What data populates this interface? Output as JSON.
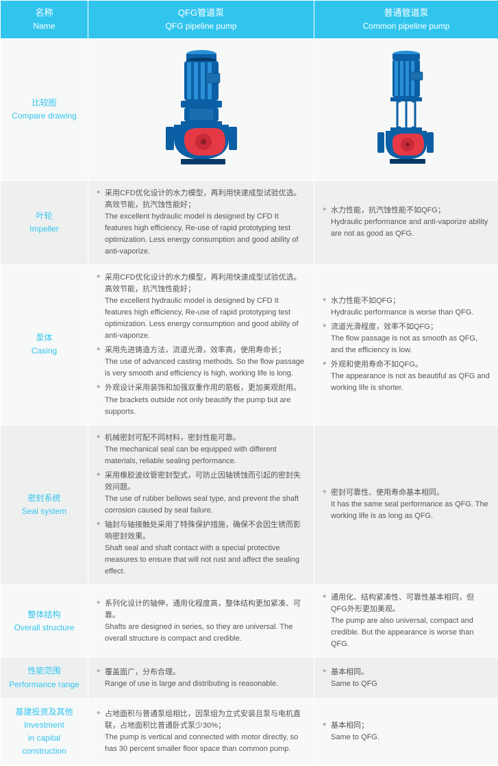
{
  "colors": {
    "header_bg": "#31c5ee",
    "header_text": "#ffffff",
    "name_text": "#31c5ee",
    "body_text": "#555555",
    "bullet": "#b0b0b0",
    "row_alt": "#eef0f0",
    "row_norm": "#f7f8f8",
    "border": "#ffffff",
    "pump_body": "#0b5fa4",
    "pump_highlight": "#2a8fd6",
    "pump_red": "#e63946",
    "pump_shadow": "#063a66"
  },
  "columns": {
    "name": {
      "cn": "名称",
      "en": "Name"
    },
    "qfg": {
      "cn": "QFG管道泵",
      "en": "QFG pipeline pump"
    },
    "common": {
      "cn": "普通管道泵",
      "en": "Common pipeline pump"
    }
  },
  "rows": {
    "compare": {
      "cn": "比较图",
      "en": "Compare drawing"
    },
    "impeller": {
      "cn": "叶轮",
      "en": "Impeller",
      "qfg_items": [
        "采用CFD优化设计的水力模型，再利用快速成型试验优选。高效节能，抗汽蚀性能好；\nThe excellent hydraulic model is designed by CFD It features high efficiency, Re-use of rapid prototyping test optimization. Less energy consumption and good ability of anti-vaporize."
      ],
      "common_items": [
        "水力性能，抗汽蚀性能不如QFG；\nHydraulic performance and anti-vaporize ability are not as good as QFG."
      ]
    },
    "casing": {
      "cn": "泵体",
      "en": "Casing",
      "qfg_items": [
        "采用CFD优化设计的水力模型，再利用快速成型试验优选。高效节能，抗汽蚀性能好；\nThe excellent hydraulic model is designed by CFD It features high efficiency, Re-use of rapid prototyping test optimization. Less energy consumption and good ability of anti-vaporize.",
        "采用先进铸造方法，流道光滑，效率高，使用寿命长；\nThe use of advanced casting methods. So the flow passage is very smooth and efficiency is high, working life is long.",
        "外观设计采用装饰和加强双重作用的筋板，更加美观耐用。\nThe brackets outside not only beautify the pump but are supports."
      ],
      "common_items": [
        "水力性能不如QFG；\nHydraulic performance is worse than QFG.",
        "流道光滑程度，效率不如QFG；\nThe flow passage is not as smooth as QFG, and the efficiency is low.",
        "外观和使用寿命不如QFG。\nThe appearance is not as beautiful as QFG and working life is shorter."
      ]
    },
    "seal": {
      "cn": "密封系统",
      "en": "Seal system",
      "qfg_items": [
        "机械密封可配不同材料，密封性能可靠。\nThe mechanical seal can be equipped with different materials, reliable sealing performance.",
        "采用橡胶波纹管密封型式，可防止因轴锈蚀而引起的密封失效问题。\nThe use of rubber bellows seal type, and prevent the shaft corrosion caused by seal failure.",
        "轴封与轴接触处采用了特殊保护措施，确保不会因生锈而影响密封效果。\nShaft seal and shaft contact with a special protective measures to ensure that will not rust and affect the sealing effect."
      ],
      "common_items": [
        "密封可靠性、使用寿命基本相同。\nIt has the same seal performance as QFG. The working life is as long as QFG."
      ]
    },
    "structure": {
      "cn": "整体结构",
      "en": "Overall structure",
      "qfg_items": [
        "系列化设计的轴伸，通用化程度高，整体结构更加紧凑、可靠。\nShafts are designed in series, so they are universal. The overall structure is compact and credible."
      ],
      "common_items": [
        "通用化、结构紧凑性、可靠性基本相同，但QFG外形更加美观。\nThe pump are also universal, compact and credible. But the appearance is worse than QFG."
      ]
    },
    "performance": {
      "cn": "性能范围",
      "en": "Performance range",
      "qfg_items": [
        "覆盖面广，分布合理。\nRange of use is large and distributing is reasonable."
      ],
      "common_items": [
        "基本相同。\nSame to QFG"
      ]
    },
    "investment": {
      "cn": "基建投资及其他",
      "en_l1": "Investment",
      "en_l2": "in capital",
      "en_l3": "construction",
      "qfg_items": [
        "占地面积与普通泵组相比，因泵组为立式安装且泵与电机直联，占地面积比普通卧式泵少30%；\nThe pump is vertical and connected with motor directly, so has 30 percent smaller floor space than common pump."
      ],
      "common_items": [
        "基本相同；\nSame to QFG."
      ]
    }
  }
}
